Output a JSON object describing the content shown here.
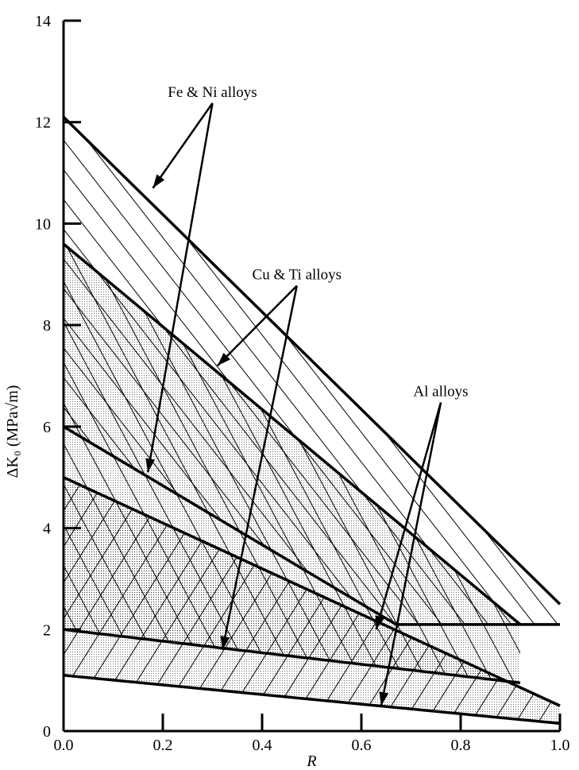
{
  "chart_data": {
    "type": "area",
    "xlabel": "R",
    "ylabel": "ΔK₀ (MPa√m)",
    "xlim": [
      0.0,
      1.0
    ],
    "ylim": [
      0,
      14
    ],
    "x_ticks": [
      "0.0",
      "0.2",
      "0.4",
      "0.6",
      "0.8",
      "1.0"
    ],
    "y_ticks": [
      "0",
      "2",
      "4",
      "6",
      "8",
      "10",
      "12",
      "14"
    ],
    "grid": false,
    "series": [
      {
        "name": "Fe & Ni alloys",
        "pattern": "hatch",
        "upper": [
          [
            0.0,
            12.1
          ],
          [
            1.0,
            2.5
          ]
        ],
        "lower": [
          [
            0.0,
            6.0
          ],
          [
            0.67,
            2.1
          ],
          [
            1.0,
            2.1
          ]
        ]
      },
      {
        "name": "Cu & Ti alloys",
        "pattern": "stipple+hatch",
        "upper": [
          [
            0.0,
            9.6
          ],
          [
            0.92,
            2.1
          ]
        ],
        "lower": [
          [
            0.0,
            2.0
          ],
          [
            0.92,
            0.95
          ]
        ]
      },
      {
        "name": "Al alloys",
        "pattern": "stipple+hatch",
        "upper": [
          [
            0.0,
            5.0
          ],
          [
            1.0,
            0.5
          ]
        ],
        "lower": [
          [
            0.0,
            1.1
          ],
          [
            1.0,
            0.15
          ]
        ]
      }
    ],
    "annotations": [
      {
        "text": "Fe & Ni alloys",
        "at": [
          0.3,
          12.5
        ],
        "arrows_to": [
          [
            0.18,
            10.7
          ],
          [
            0.17,
            5.1
          ]
        ]
      },
      {
        "text": "Cu & Ti alloys",
        "at": [
          0.47,
          8.9
        ],
        "arrows_to": [
          [
            0.31,
            7.2
          ],
          [
            0.32,
            1.6
          ]
        ]
      },
      {
        "text": "Al alloys",
        "at": [
          0.76,
          6.6
        ],
        "arrows_to": [
          [
            0.63,
            2.0
          ],
          [
            0.64,
            0.5
          ]
        ]
      }
    ]
  }
}
